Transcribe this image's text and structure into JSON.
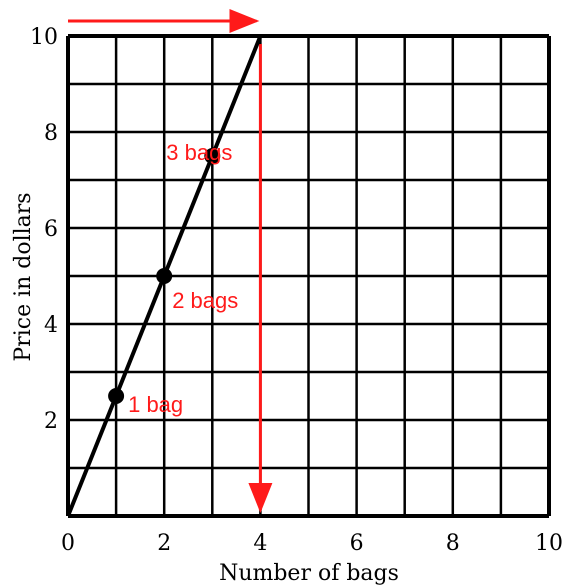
{
  "chart_data": {
    "type": "line",
    "xlabel": "Number of bags",
    "ylabel": "Price in dollars",
    "xlim": [
      0,
      10
    ],
    "ylim": [
      0,
      10
    ],
    "x_ticks": [
      "0",
      "2",
      "4",
      "6",
      "8",
      "10"
    ],
    "y_ticks": [
      "2",
      "4",
      "6",
      "8",
      "10"
    ],
    "grid": true,
    "grid_step": 1,
    "series": [
      {
        "x": [
          0,
          4
        ],
        "y": [
          0,
          10
        ]
      }
    ],
    "points": [
      {
        "x": 1,
        "y": 2.5,
        "label": "1 bag"
      },
      {
        "x": 2,
        "y": 5,
        "label": "2 bags"
      },
      {
        "x": 3,
        "y": 7.5,
        "label": "3 bags"
      }
    ],
    "arrows": [
      {
        "from": [
          0,
          10
        ],
        "to": [
          4,
          10
        ]
      },
      {
        "from": [
          4,
          10
        ],
        "to": [
          4,
          0
        ]
      }
    ],
    "colors": {
      "line": "#000000",
      "grid": "#000000",
      "annotation": "#ff1a1a"
    }
  }
}
